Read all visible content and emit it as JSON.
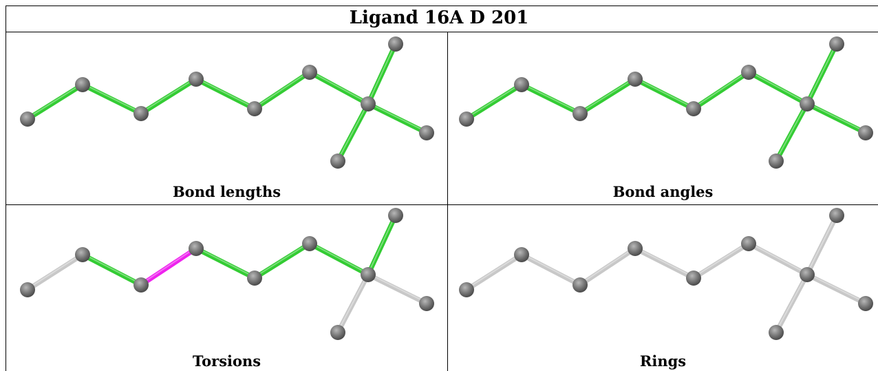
{
  "title": "Ligand 16A D 201",
  "panels": [
    {
      "caption": "Bond lengths",
      "bond_colors": [
        "green",
        "green",
        "green",
        "green",
        "green",
        "green",
        "green",
        "green"
      ]
    },
    {
      "caption": "Bond angles",
      "bond_colors": [
        "green",
        "green",
        "green",
        "green",
        "green",
        "green",
        "green",
        "green"
      ]
    },
    {
      "caption": "Torsions",
      "bond_colors": [
        "grey",
        "green",
        "magenta",
        "green",
        "green",
        "green",
        "grey",
        "grey"
      ]
    },
    {
      "caption": "Rings",
      "bond_colors": [
        "grey",
        "grey",
        "grey",
        "grey",
        "grey",
        "grey",
        "grey",
        "grey"
      ]
    }
  ],
  "colors": {
    "green": "#33cc33",
    "magenta": "#ee22ee",
    "grey": "#c8c8c8",
    "atom": "#777777"
  }
}
